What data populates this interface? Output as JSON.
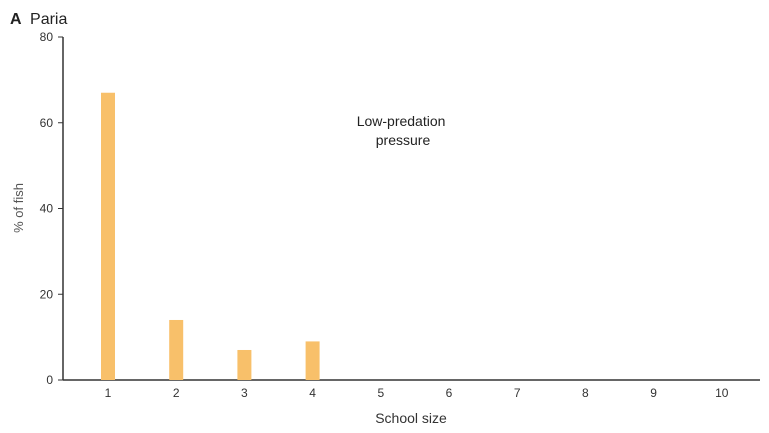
{
  "panel": {
    "letter": "A",
    "title": "Paria"
  },
  "chart_data": {
    "type": "bar",
    "title": "Paria",
    "categories": [
      "1",
      "2",
      "3",
      "4",
      "5",
      "6",
      "7",
      "8",
      "9",
      "10"
    ],
    "values": [
      67,
      14,
      7,
      9,
      0,
      0,
      0,
      0,
      0,
      0
    ],
    "xlabel": "School size",
    "ylabel": "% of fish",
    "ylim": [
      0,
      80
    ],
    "yticks": [
      "0",
      "20",
      "40",
      "60",
      "80"
    ],
    "annotation_lines": [
      "Low-predation",
      "pressure"
    ],
    "grid": false,
    "bar_color": "#f8c06a"
  }
}
